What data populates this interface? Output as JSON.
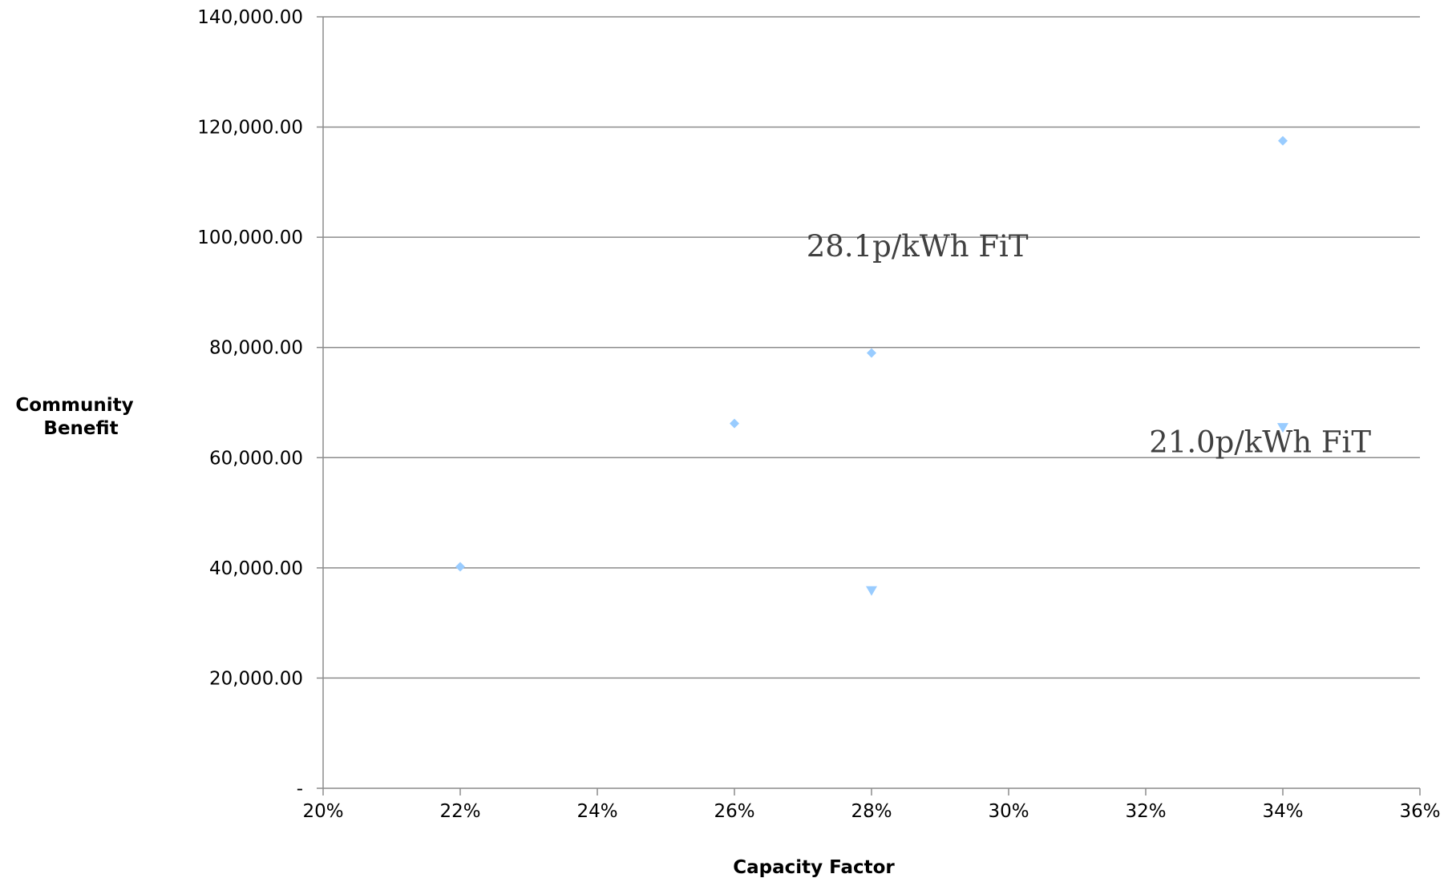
{
  "chart_data": {
    "type": "scatter",
    "title": "",
    "xlabel": "Capacity Factor",
    "ylabel_lines": [
      "Community",
      "Benefit"
    ],
    "xlim": [
      0.2,
      0.36
    ],
    "ylim": [
      0,
      140000
    ],
    "x_ticks": [
      0.2,
      0.22,
      0.24,
      0.26,
      0.28,
      0.3,
      0.32,
      0.34,
      0.36
    ],
    "x_tick_labels": [
      "20%",
      "22%",
      "24%",
      "26%",
      "28%",
      "30%",
      "32%",
      "34%",
      "36%"
    ],
    "y_ticks": [
      0,
      20000,
      40000,
      60000,
      80000,
      100000,
      120000,
      140000
    ],
    "y_tick_labels": [
      "-",
      "20,000.00",
      "40,000.00",
      "60,000.00",
      "80,000.00",
      "100,000.00",
      "120,000.00",
      "140,000.00"
    ],
    "grid": "horizontal",
    "series": [
      {
        "marker": "diamond",
        "color": "#99CCFF",
        "points": [
          {
            "x": 0.22,
            "y": 40200
          },
          {
            "x": 0.26,
            "y": 66200
          },
          {
            "x": 0.28,
            "y": 79000
          },
          {
            "x": 0.34,
            "y": 117500
          }
        ]
      },
      {
        "marker": "triangle-down",
        "color": "#99CCFF",
        "points": [
          {
            "x": 0.28,
            "y": 35800
          },
          {
            "x": 0.34,
            "y": 65400
          }
        ]
      }
    ],
    "annotations": [
      {
        "text": "28.1p/kWh FiT",
        "x": 0.2705,
        "y": 96500
      },
      {
        "text": "21.0p/kWh FiT",
        "x": 0.3205,
        "y": 61000
      }
    ]
  }
}
